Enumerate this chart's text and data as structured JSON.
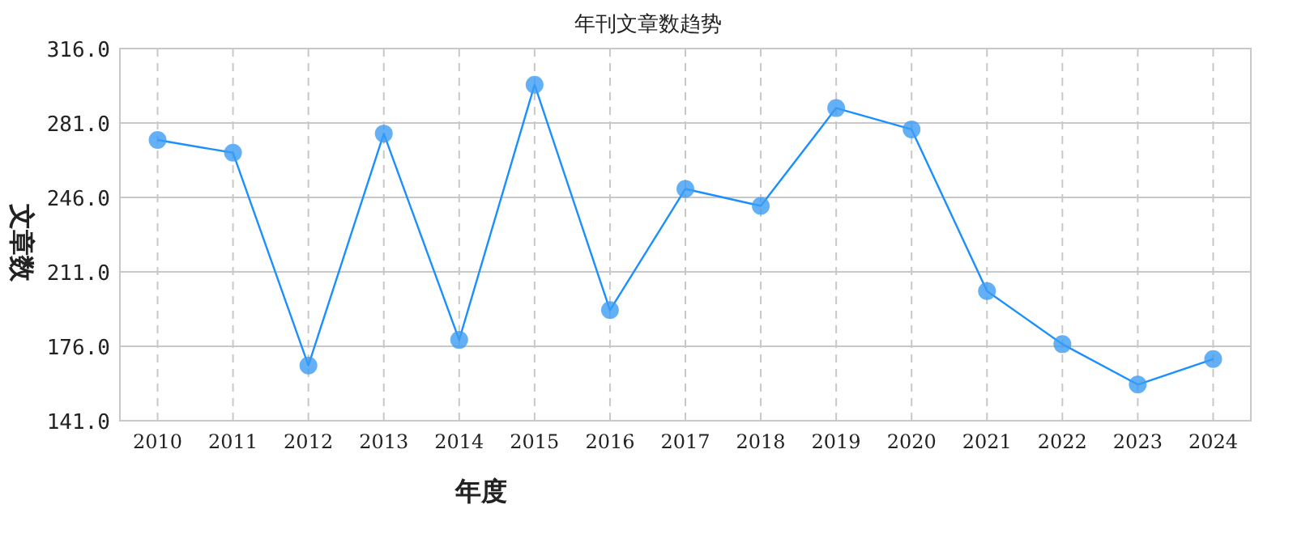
{
  "chart_data": {
    "type": "line",
    "title": "年刊文章数趋势",
    "xlabel": "年度",
    "ylabel": "文章数",
    "categories": [
      "2010",
      "2011",
      "2012",
      "2013",
      "2014",
      "2015",
      "2016",
      "2017",
      "2018",
      "2019",
      "2020",
      "2021",
      "2022",
      "2023",
      "2024"
    ],
    "series": [
      {
        "color": "#3d9cf5",
        "values": [
          273,
          267,
          167,
          276,
          179,
          299,
          193,
          250,
          242,
          288,
          278,
          202,
          177,
          158,
          170
        ]
      }
    ],
    "ylim": [
      141,
      316
    ],
    "yticks": [
      {
        "value": 141,
        "label": "141.0"
      },
      {
        "value": 176,
        "label": "176.0"
      },
      {
        "value": 211,
        "label": "211.0"
      },
      {
        "value": 246,
        "label": "246.0"
      },
      {
        "value": 281,
        "label": "281.0"
      },
      {
        "value": 316,
        "label": "316.0"
      }
    ],
    "grid": true,
    "marker": "circle",
    "line_style": "solid"
  }
}
